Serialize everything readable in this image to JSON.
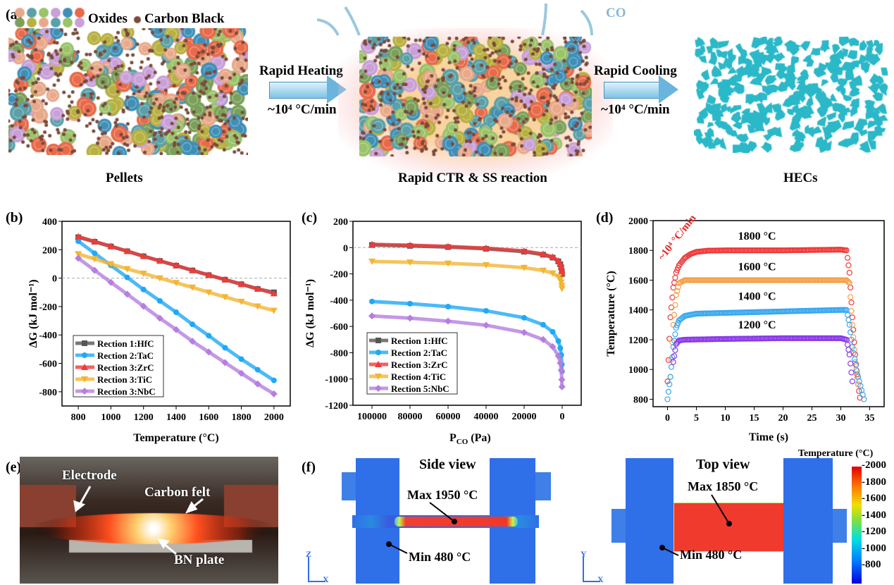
{
  "panel_a": {
    "label": "(a)",
    "legend_oxides": "Oxides",
    "legend_carbon": "Carbon Black",
    "heating_label": "Rapid Heating",
    "heating_rate": "~10⁴ °C/min",
    "cooling_label": "Rapid Cooling",
    "cooling_rate": "~10⁴ °C/min",
    "gas_label": "CO",
    "caption_left": "Pellets",
    "caption_mid": "Rapid CTR & SS reaction",
    "caption_right": "HECs",
    "oxide_colors": [
      "#e8a98a",
      "#5aa0a8",
      "#9ac36a",
      "#c9a0d8",
      "#3f8fb8",
      "#e86a4a",
      "#7aa05a",
      "#b8b040"
    ],
    "carbon_color": "#7a4a3a",
    "hec_color": "#2bb8c8"
  },
  "chart_data": [
    {
      "panel": "(b)",
      "type": "line",
      "xlabel": "Temperature (°C)",
      "ylabel": "ΔG (kJ mol⁻¹)",
      "xlim": [
        700,
        2100
      ],
      "ylim": [
        -900,
        400
      ],
      "xticks": [
        800,
        1000,
        1200,
        1400,
        1600,
        1800,
        2000
      ],
      "yticks": [
        -800,
        -600,
        -400,
        -200,
        0,
        200,
        400
      ],
      "zero_line": true,
      "legend": "bottom-left",
      "x": [
        800,
        900,
        1000,
        1100,
        1200,
        1300,
        1400,
        1500,
        1600,
        1700,
        1800,
        1900,
        2000
      ],
      "series": [
        {
          "name": "Rection 1:HfC",
          "color": "#555555",
          "marker": "square",
          "values": [
            288,
            256,
            223,
            189,
            154,
            121,
            88,
            54,
            21,
            -11,
            -43,
            -76,
            -100
          ]
        },
        {
          "name": "Rection 2:TaC",
          "color": "#1fa9f5",
          "marker": "circle",
          "values": [
            260,
            175,
            90,
            5,
            -80,
            -160,
            -240,
            -325,
            -405,
            -490,
            -570,
            -645,
            -720
          ]
        },
        {
          "name": "Rection 3:ZrC",
          "color": "#ee3b3b",
          "marker": "triangle-up",
          "values": [
            292,
            258,
            225,
            190,
            155,
            122,
            90,
            55,
            22,
            -10,
            -42,
            -75,
            -108
          ]
        },
        {
          "name": "Rection 3:TiC",
          "color": "#f2b533",
          "marker": "triangle-down",
          "values": [
            170,
            135,
            100,
            65,
            33,
            0,
            -33,
            -65,
            -100,
            -133,
            -165,
            -198,
            -228
          ]
        },
        {
          "name": "Rection 3:NbC",
          "color": "#b57ee0",
          "marker": "diamond",
          "values": [
            140,
            55,
            -30,
            -113,
            -198,
            -282,
            -362,
            -445,
            -520,
            -595,
            -670,
            -745,
            -815
          ]
        }
      ]
    },
    {
      "panel": "(c)",
      "type": "line",
      "xlabel": "P",
      "xlabel_sub": "CO",
      "xlabel_unit": " (Pa)",
      "ylabel": "ΔG (kJ mol⁻¹)",
      "xlim": [
        110000,
        -10000
      ],
      "ylim": [
        -1200,
        200
      ],
      "xticks": [
        100000,
        80000,
        60000,
        40000,
        20000,
        0
      ],
      "yticks": [
        -1200,
        -1000,
        -800,
        -600,
        -400,
        -200,
        0,
        200
      ],
      "zero_line": true,
      "legend": "bottom-left",
      "x": [
        100000,
        80000,
        60000,
        40000,
        20000,
        10000,
        5000,
        2000,
        1000,
        500,
        200,
        100
      ],
      "series": [
        {
          "name": "Rection 1:HfC",
          "color": "#555555",
          "marker": "square",
          "values": [
            20,
            13,
            4,
            -9,
            -31,
            -54,
            -76,
            -105,
            -127,
            -150,
            -179,
            -201
          ]
        },
        {
          "name": "Rection 2:TaC",
          "color": "#1fa9f5",
          "marker": "circle",
          "values": [
            -410,
            -427,
            -449,
            -481,
            -534,
            -587,
            -641,
            -711,
            -765,
            -818,
            -889,
            -942
          ]
        },
        {
          "name": "Rection 3:ZrC",
          "color": "#ee3b3b",
          "marker": "triangle-up",
          "values": [
            25,
            18,
            9,
            -4,
            -26,
            -49,
            -71,
            -100,
            -122,
            -145,
            -174,
            -196
          ]
        },
        {
          "name": "Rection 4:TiC",
          "color": "#f2b533",
          "marker": "triangle-down",
          "values": [
            -105,
            -112,
            -120,
            -132,
            -153,
            -174,
            -195,
            -222,
            -243,
            -264,
            -291,
            -312
          ]
        },
        {
          "name": "Rection 5:NbC",
          "color": "#b57ee0",
          "marker": "diamond",
          "values": [
            -520,
            -537,
            -560,
            -591,
            -646,
            -700,
            -754,
            -825,
            -879,
            -933,
            -1005,
            -1059
          ]
        }
      ]
    },
    {
      "panel": "(d)",
      "type": "scatter",
      "xlabel": "Time (s)",
      "ylabel": "Temperature (°C)",
      "xlim": [
        -2.5,
        37.5
      ],
      "ylim": [
        750,
        2000
      ],
      "xticks": [
        0,
        5,
        10,
        15,
        20,
        25,
        30,
        35
      ],
      "yticks": [
        800,
        1000,
        1200,
        1400,
        1600,
        1800,
        2000
      ],
      "annotation": "~10⁴ °C/min",
      "annotation_color": "#ee2222",
      "series": [
        {
          "name": "1800 °C",
          "color": "#f03a3a",
          "t": [
            0,
            0.5,
            1,
            1.5,
            2,
            3,
            4,
            5,
            7,
            10,
            20,
            30,
            31,
            31.5,
            32,
            32.5,
            33,
            33.3
          ],
          "values": [
            920,
            1350,
            1550,
            1650,
            1700,
            1750,
            1775,
            1790,
            1798,
            1800,
            1800,
            1805,
            1800,
            1650,
            1350,
            1100,
            900,
            810
          ]
        },
        {
          "name": "1600 °C",
          "color": "#f5a04a",
          "t": [
            0.5,
            1,
            1.5,
            2,
            3,
            10,
            20,
            31,
            31.5,
            32,
            32.5,
            33
          ],
          "values": [
            950,
            1300,
            1500,
            1580,
            1600,
            1600,
            1600,
            1600,
            1580,
            1300,
            1050,
            900
          ]
        },
        {
          "name": "1400 °C",
          "color": "#3aa8f0",
          "t": [
            0,
            0.5,
            1,
            1.5,
            2,
            3,
            5,
            10,
            20,
            30,
            31,
            31.5,
            32,
            33,
            34
          ],
          "values": [
            800,
            950,
            1150,
            1280,
            1330,
            1360,
            1375,
            1380,
            1390,
            1400,
            1400,
            1300,
            1150,
            950,
            800
          ]
        },
        {
          "name": "1200 °C",
          "color": "#8a3aea",
          "t": [
            1,
            1.5,
            2,
            3,
            10,
            20,
            30,
            31,
            31.5,
            32
          ],
          "values": [
            1050,
            1170,
            1195,
            1200,
            1205,
            1210,
            1210,
            1200,
            1100,
            920
          ]
        }
      ]
    }
  ],
  "panel_e": {
    "label": "(e)",
    "electrode": "Electrode",
    "carbon_felt": "Carbon felt",
    "bn_plate": "BN plate"
  },
  "panel_f": {
    "label": "(f)",
    "side_title": "Side view",
    "side_max": "Max 1950 °C",
    "side_min": "Min 480 °C",
    "side_axes": [
      "Z",
      "X"
    ],
    "top_title": "Top view",
    "top_max": "Max 1850 °C",
    "top_min": "Min 480 °C",
    "top_axes": [
      "Y",
      "X"
    ],
    "colorbar_title": "Temperature  (°C)",
    "colorbar_ticks": [
      "2000",
      "1800",
      "1600",
      "1400",
      "1200",
      "1000",
      "800"
    ]
  }
}
